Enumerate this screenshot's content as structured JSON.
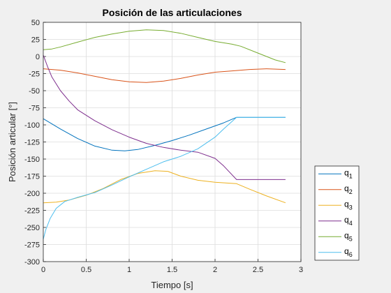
{
  "chart_data": {
    "type": "line",
    "title": "Posición de las articulaciones",
    "xlabel": "Tiempo [s]",
    "ylabel": "Posición articular [°]",
    "xlim": [
      0,
      3
    ],
    "ylim": [
      -300,
      50
    ],
    "xticks": [
      0,
      0.5,
      1,
      1.5,
      2,
      2.5,
      3
    ],
    "xtick_labels": [
      "0",
      "0.5",
      "1",
      "1.5",
      "2",
      "2.5",
      "3"
    ],
    "yticks": [
      -300,
      -275,
      -250,
      -225,
      -200,
      -175,
      -150,
      -125,
      -100,
      -75,
      -50,
      -25,
      0,
      25,
      50
    ],
    "ytick_labels": [
      "-300",
      "-275",
      "-250",
      "-225",
      "-200",
      "-175",
      "-150",
      "-125",
      "-100",
      "-75",
      "-50",
      "-25",
      "0",
      "25",
      "50"
    ],
    "grid": true,
    "legend_position": "outside-bottom-right",
    "series": [
      {
        "name": "q",
        "sub": "1",
        "color": "#0072BD",
        "x": [
          0,
          0.2,
          0.4,
          0.6,
          0.8,
          0.95,
          1.1,
          1.3,
          1.5,
          1.7,
          1.9,
          2.1,
          2.25,
          2.4,
          2.6,
          2.82
        ],
        "y": [
          -91,
          -106,
          -120,
          -131,
          -137,
          -138,
          -136,
          -130,
          -123,
          -115,
          -106,
          -97,
          -89,
          -89,
          -89,
          -89
        ]
      },
      {
        "name": "q",
        "sub": "2",
        "color": "#D95319",
        "x": [
          0,
          0.2,
          0.4,
          0.6,
          0.8,
          1.0,
          1.2,
          1.4,
          1.6,
          1.8,
          2.0,
          2.2,
          2.4,
          2.6,
          2.82
        ],
        "y": [
          -18,
          -20,
          -24,
          -29,
          -34,
          -37,
          -38,
          -36,
          -32,
          -27,
          -23,
          -21,
          -19,
          -18,
          -19
        ]
      },
      {
        "name": "q",
        "sub": "3",
        "color": "#EDB120",
        "x": [
          0,
          0.15,
          0.3,
          0.5,
          0.7,
          0.9,
          1.1,
          1.3,
          1.45,
          1.6,
          1.8,
          2.0,
          2.25,
          2.4,
          2.6,
          2.82
        ],
        "y": [
          -214,
          -213,
          -210,
          -203,
          -193,
          -180,
          -171,
          -167,
          -168,
          -175,
          -181,
          -184,
          -186,
          -194,
          -204,
          -214
        ]
      },
      {
        "name": "q",
        "sub": "4",
        "color": "#7E2F8E",
        "x": [
          0,
          0.05,
          0.1,
          0.2,
          0.3,
          0.4,
          0.6,
          0.8,
          1.0,
          1.2,
          1.4,
          1.6,
          1.8,
          2.0,
          2.1,
          2.25,
          2.4,
          2.6,
          2.82
        ],
        "y": [
          2,
          -15,
          -30,
          -50,
          -65,
          -78,
          -94,
          -107,
          -118,
          -127,
          -133,
          -137,
          -140,
          -149,
          -160,
          -180,
          -180,
          -180,
          -180
        ]
      },
      {
        "name": "q",
        "sub": "5",
        "color": "#77AC30",
        "x": [
          0,
          0.1,
          0.2,
          0.4,
          0.6,
          0.8,
          1.0,
          1.2,
          1.4,
          1.6,
          1.8,
          2.0,
          2.2,
          2.3,
          2.5,
          2.7,
          2.82
        ],
        "y": [
          10,
          11,
          14,
          21,
          28,
          33,
          37,
          39,
          38,
          34,
          28,
          22,
          18,
          15,
          5,
          -5,
          -9
        ]
      },
      {
        "name": "q",
        "sub": "6",
        "color": "#4DBEEE",
        "x": [
          0,
          0.03,
          0.08,
          0.15,
          0.25,
          0.4,
          0.6,
          0.8,
          1.0,
          1.2,
          1.4,
          1.6,
          1.8,
          2.0,
          2.1,
          2.25,
          2.4,
          2.6,
          2.82
        ],
        "y": [
          -267,
          -253,
          -237,
          -222,
          -212,
          -206,
          -199,
          -188,
          -176,
          -165,
          -154,
          -146,
          -135,
          -118,
          -106,
          -89,
          -89,
          -89,
          -89
        ]
      }
    ]
  }
}
